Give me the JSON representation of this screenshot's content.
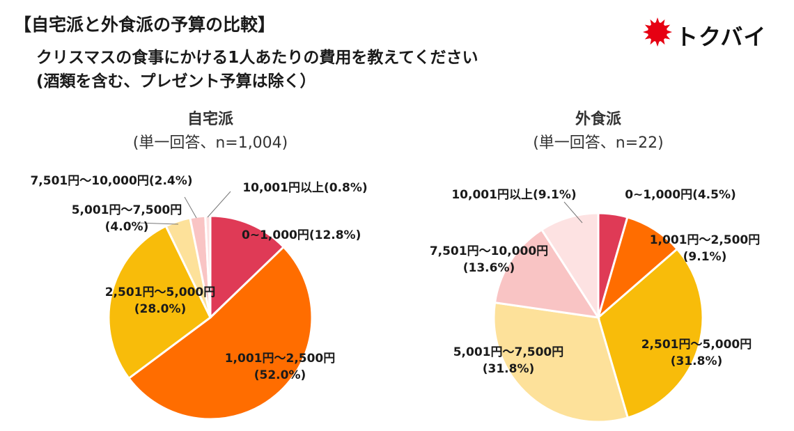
{
  "header": {
    "main_title": "【自宅派と外食派の予算の比較】",
    "subtitle_line1": "クリスマスの食事にかける1人あたりの費用を教えてください",
    "subtitle_line2": "(酒類を含む、プレゼント予算は除く）"
  },
  "logo": {
    "text": "トクバイ",
    "color": "#e60012"
  },
  "chart_data": [
    {
      "type": "pie",
      "title": "自宅派",
      "subtitle": "(単一回答、n=1,004)",
      "slices": [
        {
          "label": "0~1,000円(12.8%)",
          "value": 12.8,
          "color": "#df3a56"
        },
        {
          "label": "1,001円～2,500円 (52.0%)",
          "value": 52.0,
          "color": "#ff6d00"
        },
        {
          "label": "2,501円～5,000円 (28.0%)",
          "value": 28.0,
          "color": "#f8bc0a"
        },
        {
          "label": "5,001円～7,500円 (4.0%)",
          "value": 4.0,
          "color": "#fde19a"
        },
        {
          "label": "7,501円～10,000円(2.4%)",
          "value": 2.4,
          "color": "#f9c4c4"
        },
        {
          "label": "10,001円以上(0.8%)",
          "value": 0.8,
          "color": "#fde2e2"
        }
      ]
    },
    {
      "type": "pie",
      "title": "外食派",
      "subtitle": "(単一回答、n=22)",
      "slices": [
        {
          "label": "0~1,000円(4.5%)",
          "value": 4.5,
          "color": "#df3a56"
        },
        {
          "label": "1,001円～2,500円 (9.1%)",
          "value": 9.1,
          "color": "#ff6d00"
        },
        {
          "label": "2,501円～5,000円 (31.8%)",
          "value": 31.8,
          "color": "#f8bc0a"
        },
        {
          "label": "5,001円～7,500円 (31.8%)",
          "value": 31.8,
          "color": "#fde19a"
        },
        {
          "label": "7,501円～10,000円 (13.6%)",
          "value": 13.6,
          "color": "#f9c4c4"
        },
        {
          "label": "10,001円以上(9.1%)",
          "value": 9.1,
          "color": "#fde2e2"
        }
      ]
    }
  ]
}
